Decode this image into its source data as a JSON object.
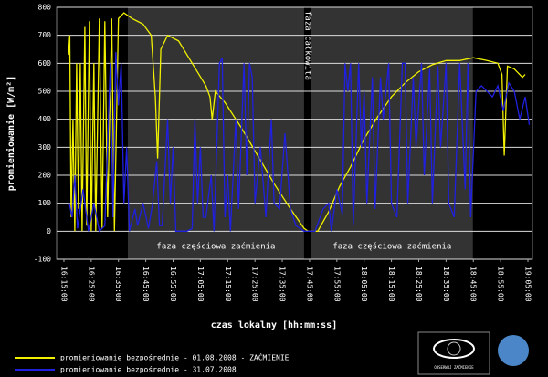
{
  "chart_data": {
    "type": "line",
    "xlabel": "czas lokalny [hh:mm:ss]",
    "ylabel": "promieniowanie [W/m²]",
    "xlim": [
      "16:12:20",
      "19:06:40"
    ],
    "xticks": [
      "16:15:00",
      "16:25:00",
      "16:35:00",
      "16:45:00",
      "16:55:00",
      "17:05:00",
      "17:15:00",
      "17:25:00",
      "17:35:00",
      "17:45:00",
      "17:55:00",
      "18:05:00",
      "18:15:00",
      "18:25:00",
      "18:35:00",
      "18:45:00",
      "18:55:00",
      "19:05:00"
    ],
    "ylim": [
      -100,
      800
    ],
    "yticks": [
      -100,
      0,
      100,
      200,
      300,
      400,
      500,
      600,
      700,
      800
    ],
    "grid": true,
    "legend": "bottom-left",
    "phases": [
      {
        "label": "faza częściowa zaćmienia",
        "start": "16:38:25",
        "end": "17:43:00",
        "color": "#333333"
      },
      {
        "label": "faza całkowita",
        "start": "17:43:00",
        "end": "17:45:40",
        "color": "#000000"
      },
      {
        "label": "faza częściowa zaćmienia",
        "start": "17:45:40",
        "end": "18:44:50",
        "color": "#333333"
      }
    ],
    "logo_text": "OBSERWUJ ZAĆMIENIE",
    "series": [
      {
        "name": "promieniowanie bezpośrednie - 01.08.2008 - ZAĆMIENIE",
        "color": "#f0f000",
        "x": [
          "16:16:40",
          "16:17:10",
          "16:17:40",
          "16:18:20",
          "16:19:00",
          "16:19:40",
          "16:20:20",
          "16:21:00",
          "16:21:40",
          "16:22:40",
          "16:23:20",
          "16:24:20",
          "16:25:00",
          "16:26:00",
          "16:26:40",
          "16:28:00",
          "16:29:00",
          "16:30:00",
          "16:31:00",
          "16:32:30",
          "16:33:30",
          "16:35:00",
          "16:37:00",
          "16:40:00",
          "16:44:00",
          "16:47:00",
          "16:48:30",
          "16:49:20",
          "16:50:30",
          "16:53:00",
          "16:57:00",
          "17:02:00",
          "17:07:00",
          "17:08:30",
          "17:09:20",
          "17:10:30",
          "17:14:00",
          "17:20:00",
          "17:26:00",
          "17:32:00",
          "17:38:00",
          "17:43:00",
          "17:44:30",
          "17:48:00",
          "17:52:00",
          "17:56:00",
          "18:00:00",
          "18:05:00",
          "18:10:00",
          "18:15:00",
          "18:20:00",
          "18:25:00",
          "18:30:00",
          "18:35:00",
          "18:40:00",
          "18:45:00",
          "18:50:00",
          "18:54:00",
          "18:55:30",
          "18:56:20",
          "18:57:30",
          "19:00:00",
          "19:03:00",
          "19:04:00"
        ],
        "values": [
          630,
          700,
          50,
          400,
          0,
          600,
          80,
          600,
          0,
          730,
          20,
          750,
          0,
          600,
          0,
          760,
          10,
          750,
          50,
          760,
          0,
          760,
          780,
          760,
          740,
          700,
          480,
          260,
          650,
          700,
          680,
          600,
          520,
          480,
          400,
          500,
          460,
          370,
          270,
          170,
          80,
          10,
          0,
          0,
          70,
          160,
          230,
          330,
          410,
          480,
          530,
          570,
          595,
          610,
          610,
          620,
          610,
          600,
          560,
          270,
          590,
          580,
          550,
          560
        ]
      },
      {
        "name": "promieniowanie bezpośrednie - 31.07.2008",
        "color": "#2020e0",
        "x": [
          "16:17:00",
          "16:18:00",
          "16:19:00",
          "16:20:00",
          "16:22:00",
          "16:24:00",
          "16:26:00",
          "16:28:00",
          "16:30:00",
          "16:32:00",
          "16:33:00",
          "16:34:00",
          "16:35:00",
          "16:36:00",
          "16:37:00",
          "16:38:00",
          "16:39:00",
          "16:41:00",
          "16:42:00",
          "16:44:00",
          "16:46:00",
          "16:47:30",
          "16:49:00",
          "16:50:00",
          "16:51:00",
          "16:53:00",
          "16:54:00",
          "16:55:00",
          "16:56:00",
          "17:00:00",
          "17:02:00",
          "17:03:00",
          "17:04:00",
          "17:05:00",
          "17:06:00",
          "17:07:00",
          "17:09:00",
          "17:10:00",
          "17:12:00",
          "17:13:00",
          "17:14:00",
          "17:15:00",
          "17:16:00",
          "17:18:00",
          "17:19:00",
          "17:21:00",
          "17:22:00",
          "17:23:00",
          "17:24:00",
          "17:25:00",
          "17:27:00",
          "17:29:00",
          "17:31:00",
          "17:32:00",
          "17:34:00",
          "17:36:00",
          "17:38:00",
          "17:40:00",
          "17:43:00",
          "17:47:00",
          "17:50:00",
          "17:52:00",
          "17:53:00",
          "17:55:00",
          "17:57:00",
          "17:58:00",
          "17:59:00",
          "18:00:00",
          "18:01:00",
          "18:03:00",
          "18:04:00",
          "18:05:00",
          "18:06:00",
          "18:08:00",
          "18:09:00",
          "18:11:00",
          "18:12:00",
          "18:14:00",
          "18:15:00",
          "18:17:00",
          "18:19:00",
          "18:20:00",
          "18:21:00",
          "18:23:00",
          "18:24:00",
          "18:26:00",
          "18:27:00",
          "18:29:00",
          "18:30:00",
          "18:32:00",
          "18:33:00",
          "18:35:00",
          "18:36:00",
          "18:38:00",
          "18:40:00",
          "18:42:00",
          "18:43:00",
          "18:44:00",
          "18:46:00",
          "18:48:00",
          "18:50:00",
          "18:52:00",
          "18:54:00",
          "18:56:00",
          "18:58:00",
          "19:00:00",
          "19:02:00",
          "19:04:00",
          "19:05:30"
        ],
        "values": [
          100,
          50,
          200,
          10,
          150,
          0,
          100,
          0,
          20,
          600,
          50,
          640,
          450,
          600,
          100,
          300,
          0,
          80,
          20,
          100,
          10,
          100,
          250,
          20,
          20,
          400,
          100,
          300,
          0,
          0,
          10,
          400,
          100,
          300,
          50,
          50,
          200,
          0,
          600,
          620,
          50,
          200,
          0,
          400,
          80,
          600,
          200,
          600,
          550,
          100,
          300,
          50,
          400,
          100,
          80,
          350,
          80,
          20,
          0,
          0,
          80,
          100,
          0,
          150,
          60,
          600,
          500,
          600,
          20,
          600,
          300,
          500,
          100,
          550,
          80,
          550,
          400,
          600,
          100,
          50,
          600,
          600,
          100,
          550,
          300,
          600,
          200,
          580,
          100,
          590,
          300,
          600,
          100,
          50,
          600,
          150,
          600,
          50,
          500,
          520,
          500,
          480,
          520,
          430,
          530,
          500,
          400,
          480,
          380
        ]
      }
    ]
  }
}
